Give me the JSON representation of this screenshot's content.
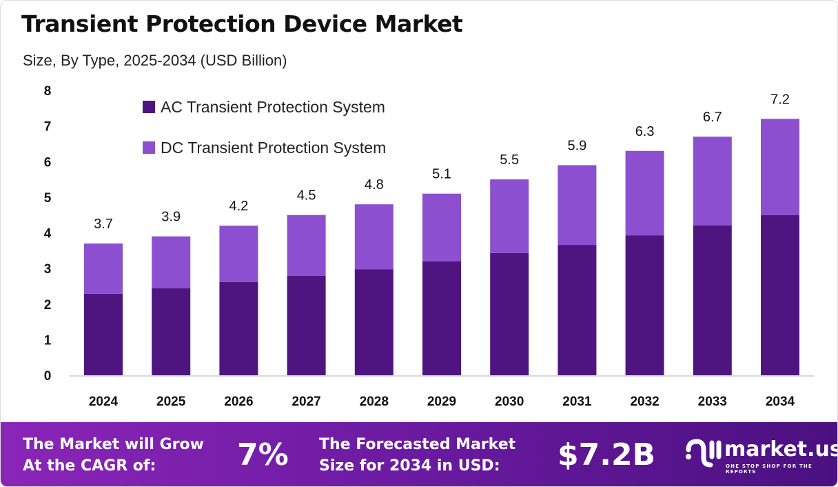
{
  "chart_data": {
    "type": "bar",
    "stacked": true,
    "title": "Transient Protection Device Market",
    "subtitle": "Size, By Type, 2025-2034 (USD Billion)",
    "categories": [
      "2024",
      "2025",
      "2026",
      "2027",
      "2028",
      "2029",
      "2030",
      "2031",
      "2032",
      "2033",
      "2034"
    ],
    "series": [
      {
        "name": "AC Transient Protection System",
        "color": "#4e1580",
        "values": [
          2.29,
          2.44,
          2.62,
          2.79,
          2.98,
          3.2,
          3.43,
          3.66,
          3.93,
          4.21,
          4.5
        ]
      },
      {
        "name": "DC Transient Protection System",
        "color": "#8c4fcf",
        "values": [
          1.41,
          1.46,
          1.58,
          1.71,
          1.82,
          1.9,
          2.07,
          2.24,
          2.37,
          2.49,
          2.7
        ]
      }
    ],
    "totals": [
      "3.7",
      "3.9",
      "4.2",
      "4.5",
      "4.8",
      "5.1",
      "5.5",
      "5.9",
      "6.3",
      "6.7",
      "7.2"
    ],
    "yticks": [
      "0",
      "1",
      "2",
      "3",
      "4",
      "5",
      "6",
      "7",
      "8"
    ],
    "ylim": [
      0,
      8
    ],
    "grid": false,
    "legend": "top-left"
  },
  "footer": {
    "cagr_label_1": "The Market will Grow",
    "cagr_label_2": "At the CAGR of:",
    "cagr_value": "7%",
    "forecast_label_1": "The Forecasted Market",
    "forecast_label_2": "Size for 2034 in USD:",
    "forecast_value": "$7.2B",
    "logo_text": "market.us",
    "logo_tagline": "ONE STOP SHOP FOR THE REPORTS"
  }
}
